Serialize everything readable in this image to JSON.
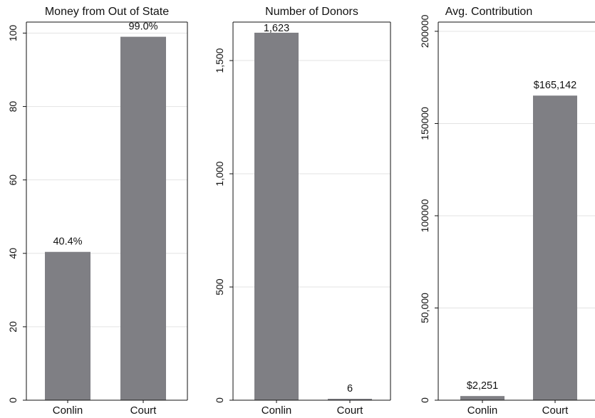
{
  "chart_data": [
    {
      "type": "bar",
      "title": "Money from Out of State",
      "categories": [
        "Conlin",
        "Court"
      ],
      "values": [
        40.4,
        99.0
      ],
      "value_labels": [
        "40.4%",
        "99.0%"
      ],
      "ylim": [
        0,
        103
      ],
      "yticks": [
        0,
        20,
        40,
        60,
        80,
        100
      ],
      "ytick_labels": [
        "0",
        "20",
        "40",
        "60",
        "80",
        "100"
      ],
      "xlabel": "",
      "ylabel": "",
      "grid": true,
      "bar_color": "#7f7f84"
    },
    {
      "type": "bar",
      "title": "Number of Donors",
      "categories": [
        "Conlin",
        "Court"
      ],
      "values": [
        1623,
        6
      ],
      "value_labels": [
        "1,623",
        "6"
      ],
      "ylim": [
        0,
        1670
      ],
      "yticks": [
        0,
        500,
        1000,
        1500
      ],
      "ytick_labels": [
        "0",
        "500",
        "1,000",
        "1,500"
      ],
      "xlabel": "",
      "ylabel": "",
      "grid": true,
      "bar_color": "#7f7f84"
    },
    {
      "type": "bar",
      "title": "Avg. Contribution",
      "categories": [
        "Conlin",
        "Court"
      ],
      "values": [
        2251,
        165142
      ],
      "value_labels": [
        "$2,251",
        "$165,142"
      ],
      "ylim": [
        0,
        205000
      ],
      "yticks": [
        0,
        50000,
        100000,
        150000,
        200000
      ],
      "ytick_labels": [
        "0",
        "50,000",
        "100000",
        "150000",
        "200000"
      ],
      "xlabel": "",
      "ylabel": "",
      "grid": true,
      "bar_color": "#7f7f84"
    }
  ]
}
